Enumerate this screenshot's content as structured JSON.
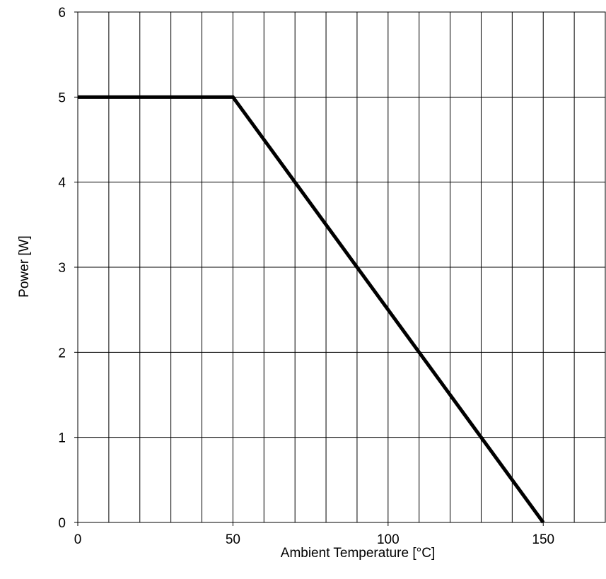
{
  "chart_data": {
    "type": "line",
    "title": "",
    "xlabel": "Ambient Temperature [°C]",
    "ylabel": "Power [W]",
    "xlim": [
      0,
      170
    ],
    "ylim": [
      0,
      6
    ],
    "x_ticks": [
      0,
      50,
      100,
      150
    ],
    "x_tick_labels": [
      "0",
      "50",
      "100",
      "150"
    ],
    "x_grid_step": 10,
    "y_ticks": [
      0,
      1,
      2,
      3,
      4,
      5,
      6
    ],
    "y_tick_labels": [
      "0",
      "1",
      "2",
      "3",
      "4",
      "5",
      "6"
    ],
    "grid": true,
    "legend": "none",
    "series": [
      {
        "color": "#000000",
        "x": [
          0,
          50,
          150
        ],
        "y": [
          5,
          5,
          0
        ]
      }
    ]
  }
}
